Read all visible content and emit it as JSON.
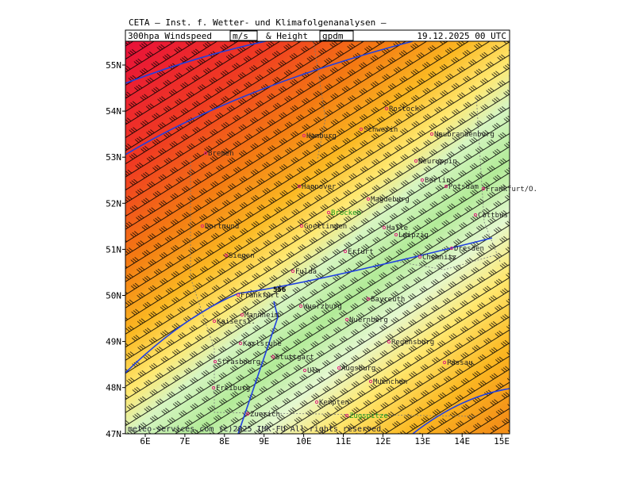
{
  "header": {
    "title": "CETA – Inst. f. Wetter- und Klimafolgenanalysen –",
    "field": "300hpa Windspeed",
    "unit1": "m/s",
    "joiner": "& Height",
    "unit2": "gpdm",
    "date": "19.12.2025 00 UTC"
  },
  "axes": {
    "lat_labels": [
      "55N",
      "54N",
      "53N",
      "52N",
      "51N",
      "50N",
      "49N",
      "48N",
      "47N"
    ],
    "lon_labels": [
      "6E",
      "7E",
      "8E",
      "9E",
      "10E",
      "11E",
      "12E",
      "13E",
      "14E",
      "15E"
    ]
  },
  "cities": [
    "Rostock",
    "Schwerin",
    "Neubrandenburg",
    "Hamburg",
    "Bremen",
    "Hannover",
    "Magdeburg",
    "Neuruppin",
    "Berlin",
    "Potsdam",
    "Frankfurt/O.",
    "Cottbus",
    "Brocken",
    "Goettingen",
    "Halle",
    "Leipzig",
    "Dortmund",
    "Siegen",
    "Erfurt",
    "Chemnitz",
    "Dresden",
    "Fulda",
    "Frankfurt",
    "Wuerzburg",
    "Bayreuth",
    "Mannheim",
    "Nuernberg",
    "Kaisersl.",
    "Karlsruhe",
    "Regensburg",
    "Stuttgart",
    "Ulm",
    "Augsburg",
    "Strasbourg",
    "Freiburg",
    "Muenchen",
    "Passau",
    "Zuerich",
    "Kempten",
    "Zugspitze"
  ],
  "contour_label": "556",
  "footer": "meteo-services.com (c)2025 IMK-FU All rights reserved"
}
